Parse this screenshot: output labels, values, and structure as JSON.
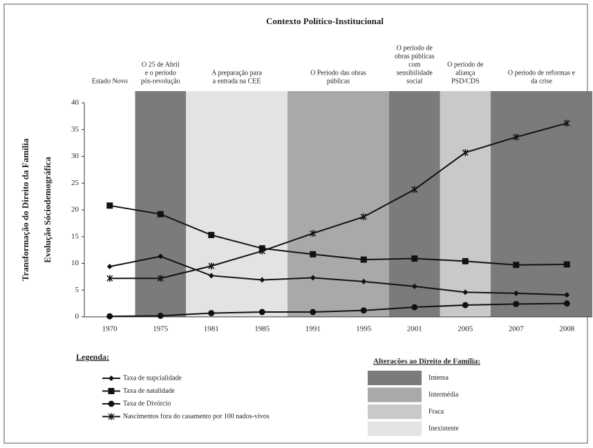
{
  "chart_data": {
    "type": "line",
    "title": "Contexto Político-Institucional",
    "y_label": [
      "Transformação do Direito da Família",
      "Evolução Sóciodemográfica"
    ],
    "categories": [
      "1970",
      "1975",
      "1981",
      "1985",
      "1991",
      "1995",
      "2001",
      "2005",
      "2007",
      "2008"
    ],
    "ylim": [
      0,
      40
    ],
    "yticks": [
      0,
      5,
      10,
      15,
      20,
      25,
      30,
      35,
      40
    ],
    "legend_title": "Legenda:",
    "series": [
      {
        "name": "Taxa de nupcialidade",
        "color": "#111111",
        "marker": "diamond",
        "values": [
          9.4,
          11.3,
          7.7,
          6.9,
          7.3,
          6.6,
          5.7,
          4.6,
          4.4,
          4.1
        ]
      },
      {
        "name": "Taxa de natalidade",
        "color": "#111111",
        "marker": "square",
        "values": [
          20.8,
          19.2,
          15.3,
          12.8,
          11.7,
          10.7,
          10.9,
          10.4,
          9.7,
          9.8
        ]
      },
      {
        "name": "Taxa de Divórcio",
        "color": "#111111",
        "marker": "circle",
        "values": [
          0.1,
          0.2,
          0.7,
          0.9,
          0.9,
          1.2,
          1.8,
          2.2,
          2.4,
          2.5
        ]
      },
      {
        "name": "Nascimentos fora do casamento por 100 nados-vivos",
        "color": "#111111",
        "marker": "star",
        "values": [
          7.2,
          7.2,
          9.5,
          12.3,
          15.6,
          18.7,
          23.8,
          30.7,
          33.6,
          36.2
        ]
      }
    ],
    "levels_title": "Alterações ao Direito de Família:",
    "levels": [
      {
        "name": "Intensa",
        "color": "#7b7b7b"
      },
      {
        "name": "Intermédia",
        "color": "#a9a9a9"
      },
      {
        "name": "Fraca",
        "color": "#c9c9c9"
      },
      {
        "name": "Inexistente",
        "color": "#e3e3e3"
      }
    ],
    "periods": [
      {
        "label": [
          "Estado Novo"
        ],
        "years": [
          "1970"
        ]
      },
      {
        "label": [
          "O 25 de Abril",
          "e o período",
          "pós-revolução"
        ],
        "years": [
          "1975"
        ],
        "level": "Intensa"
      },
      {
        "label": [
          "A preparação para",
          "a entrada na CEE"
        ],
        "years": [
          "1981",
          "1985"
        ],
        "level": "Inexistente"
      },
      {
        "label": [
          "O Período das obras",
          "públicas"
        ],
        "years": [
          "1991",
          "1995"
        ],
        "level": "Intermédia"
      },
      {
        "label": [
          "O período de",
          "obras públicas",
          "com",
          "sensibilidade",
          "social"
        ],
        "years": [
          "2001"
        ],
        "level": "Intensa"
      },
      {
        "label": [
          "O período de",
          "aliança",
          "PSD/CDS"
        ],
        "years": [
          "2005"
        ],
        "level": "Fraca"
      },
      {
        "label": [
          "O período de reformas e",
          "da crise"
        ],
        "years": [
          "2007",
          "2008"
        ],
        "level": "Intensa"
      }
    ]
  }
}
